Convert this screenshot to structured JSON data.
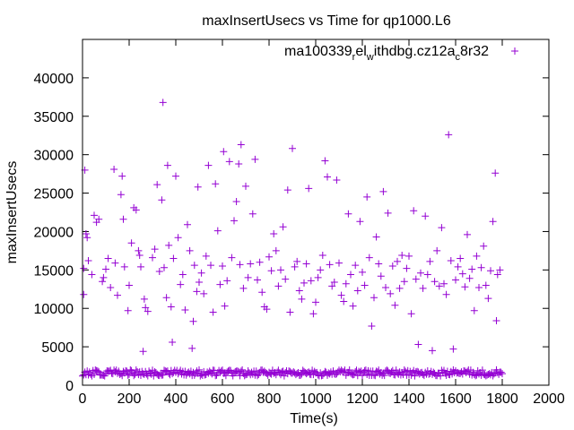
{
  "chart_data": {
    "type": "scatter",
    "title": "maxInsertUsecs vs Time for qp1000.L6",
    "xlabel": "Time(s)",
    "ylabel": "maxInsertUsecs",
    "xlim": [
      0,
      2000
    ],
    "ylim": [
      0,
      45000
    ],
    "x_ticks": [
      0,
      200,
      400,
      600,
      800,
      1000,
      1200,
      1400,
      1600,
      1800,
      2000
    ],
    "y_ticks": [
      0,
      5000,
      10000,
      15000,
      20000,
      25000,
      30000,
      35000,
      40000
    ],
    "grid": false,
    "legend_position": "top-right",
    "marker": "plus",
    "series": [
      {
        "name_parts": [
          "ma100339",
          "r",
          "el",
          "w",
          "ithdbg.cz12a",
          "c",
          "8r32"
        ],
        "color": "#9400d3",
        "points": [
          [
            5,
            15200
          ],
          [
            5,
            11800
          ],
          [
            10,
            28000
          ],
          [
            15,
            19700
          ],
          [
            20,
            19200
          ],
          [
            25,
            16200
          ],
          [
            40,
            14400
          ],
          [
            50,
            22100
          ],
          [
            60,
            21200
          ],
          [
            70,
            21600
          ],
          [
            85,
            13500
          ],
          [
            90,
            14000
          ],
          [
            100,
            15100
          ],
          [
            110,
            16500
          ],
          [
            120,
            12700
          ],
          [
            135,
            28100
          ],
          [
            140,
            15900
          ],
          [
            150,
            11700
          ],
          [
            165,
            24800
          ],
          [
            170,
            27200
          ],
          [
            175,
            21600
          ],
          [
            180,
            15400
          ],
          [
            195,
            9700
          ],
          [
            200,
            13000
          ],
          [
            210,
            18500
          ],
          [
            220,
            23100
          ],
          [
            230,
            22800
          ],
          [
            240,
            17500
          ],
          [
            245,
            16900
          ],
          [
            250,
            15400
          ],
          [
            260,
            4400
          ],
          [
            265,
            11200
          ],
          [
            270,
            10100
          ],
          [
            280,
            9600
          ],
          [
            300,
            16600
          ],
          [
            310,
            17700
          ],
          [
            320,
            26100
          ],
          [
            330,
            14800
          ],
          [
            340,
            24100
          ],
          [
            345,
            36800
          ],
          [
            350,
            15300
          ],
          [
            360,
            11400
          ],
          [
            365,
            28600
          ],
          [
            370,
            18200
          ],
          [
            380,
            10200
          ],
          [
            385,
            5600
          ],
          [
            390,
            16500
          ],
          [
            400,
            27200
          ],
          [
            410,
            19200
          ],
          [
            420,
            13100
          ],
          [
            430,
            14400
          ],
          [
            440,
            9800
          ],
          [
            450,
            20900
          ],
          [
            460,
            17500
          ],
          [
            470,
            4800
          ],
          [
            475,
            8300
          ],
          [
            480,
            15600
          ],
          [
            490,
            12200
          ],
          [
            495,
            25800
          ],
          [
            500,
            13400
          ],
          [
            510,
            14600
          ],
          [
            520,
            11900
          ],
          [
            530,
            16800
          ],
          [
            540,
            28600
          ],
          [
            550,
            15600
          ],
          [
            560,
            9500
          ],
          [
            570,
            26200
          ],
          [
            580,
            20100
          ],
          [
            590,
            13100
          ],
          [
            600,
            15500
          ],
          [
            605,
            30400
          ],
          [
            610,
            10300
          ],
          [
            620,
            13600
          ],
          [
            630,
            29100
          ],
          [
            640,
            16600
          ],
          [
            650,
            21400
          ],
          [
            660,
            23900
          ],
          [
            670,
            28800
          ],
          [
            675,
            15700
          ],
          [
            680,
            31300
          ],
          [
            690,
            12600
          ],
          [
            700,
            25900
          ],
          [
            710,
            14000
          ],
          [
            720,
            15800
          ],
          [
            730,
            22300
          ],
          [
            740,
            29400
          ],
          [
            750,
            13700
          ],
          [
            760,
            16000
          ],
          [
            770,
            12100
          ],
          [
            780,
            10200
          ],
          [
            790,
            9900
          ],
          [
            800,
            16700
          ],
          [
            810,
            14900
          ],
          [
            820,
            19700
          ],
          [
            830,
            17500
          ],
          [
            840,
            12900
          ],
          [
            850,
            15000
          ],
          [
            860,
            20600
          ],
          [
            870,
            13800
          ],
          [
            880,
            25400
          ],
          [
            890,
            9500
          ],
          [
            900,
            30800
          ],
          [
            910,
            15400
          ],
          [
            920,
            16100
          ],
          [
            930,
            12300
          ],
          [
            940,
            11200
          ],
          [
            950,
            13300
          ],
          [
            960,
            15800
          ],
          [
            970,
            25600
          ],
          [
            980,
            13600
          ],
          [
            990,
            9300
          ],
          [
            1000,
            10800
          ],
          [
            1010,
            14000
          ],
          [
            1020,
            15000
          ],
          [
            1030,
            16900
          ],
          [
            1040,
            29200
          ],
          [
            1050,
            27100
          ],
          [
            1060,
            15700
          ],
          [
            1070,
            12900
          ],
          [
            1080,
            13400
          ],
          [
            1090,
            26700
          ],
          [
            1100,
            15900
          ],
          [
            1110,
            11700
          ],
          [
            1120,
            10900
          ],
          [
            1130,
            13200
          ],
          [
            1140,
            22300
          ],
          [
            1150,
            14400
          ],
          [
            1160,
            10300
          ],
          [
            1170,
            15600
          ],
          [
            1180,
            12300
          ],
          [
            1190,
            21300
          ],
          [
            1200,
            14700
          ],
          [
            1210,
            13000
          ],
          [
            1220,
            24500
          ],
          [
            1230,
            16600
          ],
          [
            1240,
            7700
          ],
          [
            1250,
            11400
          ],
          [
            1260,
            19300
          ],
          [
            1270,
            15800
          ],
          [
            1280,
            14200
          ],
          [
            1290,
            25200
          ],
          [
            1300,
            12700
          ],
          [
            1310,
            22400
          ],
          [
            1320,
            11900
          ],
          [
            1330,
            15500
          ],
          [
            1340,
            10400
          ],
          [
            1350,
            16100
          ],
          [
            1360,
            12600
          ],
          [
            1370,
            16900
          ],
          [
            1380,
            13500
          ],
          [
            1390,
            15200
          ],
          [
            1400,
            16800
          ],
          [
            1410,
            9300
          ],
          [
            1420,
            22700
          ],
          [
            1430,
            13800
          ],
          [
            1440,
            5300
          ],
          [
            1450,
            14600
          ],
          [
            1460,
            12600
          ],
          [
            1470,
            22000
          ],
          [
            1480,
            14400
          ],
          [
            1490,
            16100
          ],
          [
            1500,
            4500
          ],
          [
            1510,
            13500
          ],
          [
            1520,
            17500
          ],
          [
            1530,
            12900
          ],
          [
            1540,
            20500
          ],
          [
            1550,
            13200
          ],
          [
            1560,
            11800
          ],
          [
            1570,
            32600
          ],
          [
            1580,
            16200
          ],
          [
            1590,
            4700
          ],
          [
            1600,
            13700
          ],
          [
            1610,
            15400
          ],
          [
            1620,
            16500
          ],
          [
            1630,
            14500
          ],
          [
            1640,
            12800
          ],
          [
            1650,
            19600
          ],
          [
            1660,
            13900
          ],
          [
            1670,
            15100
          ],
          [
            1680,
            9700
          ],
          [
            1690,
            16800
          ],
          [
            1700,
            12700
          ],
          [
            1710,
            15300
          ],
          [
            1720,
            18100
          ],
          [
            1730,
            13000
          ],
          [
            1740,
            11300
          ],
          [
            1750,
            14900
          ],
          [
            1760,
            21300
          ],
          [
            1770,
            27600
          ],
          [
            1775,
            8400
          ],
          [
            1780,
            14400
          ],
          [
            1790,
            15000
          ]
        ],
        "baseline_band": {
          "x_start": 0,
          "x_end": 1800,
          "x_step": 5,
          "y_low": 1200,
          "y_high": 2000
        }
      }
    ]
  }
}
